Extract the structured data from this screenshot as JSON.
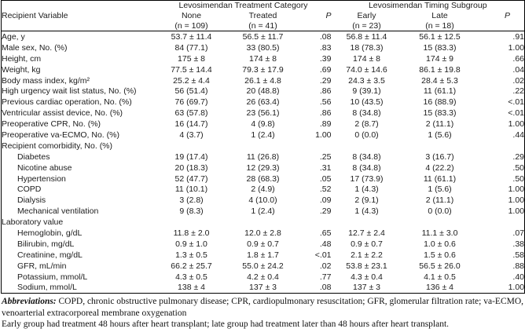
{
  "table": {
    "corner_header": "Recipient Variable",
    "groups": [
      {
        "label": "Levosimendan Treatment Category",
        "subcols": [
          "None",
          "Treated",
          "P"
        ],
        "ns": [
          "(n = 109)",
          "(n = 41)",
          ""
        ]
      },
      {
        "label": "Levosimendan Timing Subgroup",
        "subcols": [
          "Early",
          "Late",
          "P"
        ],
        "ns": [
          "(n = 23)",
          "(n = 18)",
          ""
        ]
      }
    ],
    "rows": [
      {
        "label": "Age, y",
        "indent": false,
        "values": [
          "53.7 ± 11.4",
          "56.5 ± 11.7",
          ".08",
          "56.8 ± 11.4",
          "56.1 ± 12.5",
          ".91"
        ]
      },
      {
        "label": "Male sex, No. (%)",
        "indent": false,
        "values": [
          "84 (77.1)",
          "33 (80.5)",
          ".83",
          "18 (78.3)",
          "15 (83.3)",
          "1.00"
        ]
      },
      {
        "label": "Height, cm",
        "indent": false,
        "values": [
          "175 ± 8",
          "174 ± 8",
          ".39",
          "174 ± 8",
          "174 ± 9",
          ".66"
        ]
      },
      {
        "label": "Weight, kg",
        "indent": false,
        "values": [
          "77.5 ± 14.4",
          "79.3 ± 17.9",
          ".69",
          "74.0 ± 14.6",
          "86.1 ± 19.8",
          ".04"
        ]
      },
      {
        "label": "Body mass index, kg/m²",
        "indent": false,
        "values": [
          "25.2 ± 4.4",
          "26.1 ± 4.8",
          ".29",
          "24.3 ± 3.5",
          "28.4 ± 5.3",
          ".02"
        ]
      },
      {
        "label": "High urgency wait list status, No. (%)",
        "indent": false,
        "values": [
          "56 (51.4)",
          "20 (48.8)",
          ".86",
          "9 (39.1)",
          "11 (61.1)",
          ".22"
        ]
      },
      {
        "label": "Previous cardiac operation, No. (%)",
        "indent": false,
        "values": [
          "76 (69.7)",
          "26 (63.4)",
          ".56",
          "10 (43.5)",
          "16 (88.9)",
          "<.01"
        ]
      },
      {
        "label": "Ventricular assist device, No. (%)",
        "indent": false,
        "values": [
          "63 (57.8)",
          "23 (56.1)",
          ".86",
          "8 (34.8)",
          "15 (83.3)",
          "<.01"
        ]
      },
      {
        "label": "Preoperative CPR, No. (%)",
        "indent": false,
        "values": [
          "16 (14.7)",
          "4 (9.8)",
          ".89",
          "2 (8.7)",
          "2 (11.1)",
          "1.00"
        ]
      },
      {
        "label": "Preoperative va-ECMO, No. (%)",
        "indent": false,
        "values": [
          "4 (3.7)",
          "1 (2.4)",
          "1.00",
          "0 (0.0)",
          "1 (5.6)",
          ".44"
        ]
      },
      {
        "label": "Recipient comorbidity, No. (%)",
        "indent": false,
        "values": [
          "",
          "",
          "",
          "",
          "",
          ""
        ]
      },
      {
        "label": "Diabetes",
        "indent": true,
        "values": [
          "19 (17.4)",
          "11 (26.8)",
          ".25",
          "8 (34.8)",
          "3 (16.7)",
          ".29"
        ]
      },
      {
        "label": "Nicotine abuse",
        "indent": true,
        "values": [
          "20 (18.3)",
          "12 (29.3)",
          ".31",
          "8 (34.8)",
          "4 (22.2)",
          ".50"
        ]
      },
      {
        "label": "Hypertension",
        "indent": true,
        "values": [
          "52 (47.7)",
          "28 (68.3)",
          ".05",
          "17 (73.9)",
          "11 (61.1)",
          ".50"
        ]
      },
      {
        "label": "COPD",
        "indent": true,
        "values": [
          "11 (10.1)",
          "2 (4.9)",
          ".52",
          "1 (4.3)",
          "1 (5.6)",
          "1.00"
        ]
      },
      {
        "label": "Dialysis",
        "indent": true,
        "values": [
          "3 (2.8)",
          "4 (10.0)",
          ".09",
          "2 (9.1)",
          "2 (11.1)",
          "1.00"
        ]
      },
      {
        "label": "Mechanical ventilation",
        "indent": true,
        "values": [
          "9 (8.3)",
          "1 (2.4)",
          ".29",
          "1 (4.3)",
          "0 (0.0)",
          "1.00"
        ]
      },
      {
        "label": "Laboratory value",
        "indent": false,
        "values": [
          "",
          "",
          "",
          "",
          "",
          ""
        ]
      },
      {
        "label": "Hemoglobin, g/dL",
        "indent": true,
        "values": [
          "11.8 ± 2.0",
          "12.0 ± 2.8",
          ".65",
          "12.7 ± 2.4",
          "11.1 ± 3.0",
          ".07"
        ]
      },
      {
        "label": "Bilirubin, mg/dL",
        "indent": true,
        "values": [
          "0.9 ± 1.0",
          "0.9 ± 0.7",
          ".48",
          "0.9 ± 0.7",
          "1.0 ± 0.6",
          ".38"
        ]
      },
      {
        "label": "Creatinine, mg/dL",
        "indent": true,
        "values": [
          "1.3 ± 0.5",
          "1.8 ± 1.7",
          "<.01",
          "2.1 ± 2.2",
          "1.5 ± 0.6",
          ".58"
        ]
      },
      {
        "label": "GFR, mL/min",
        "indent": true,
        "values": [
          "66.2 ± 25.7",
          "55.0 ± 24.2",
          ".02",
          "53.8 ± 23.1",
          "56.5 ± 26.0",
          ".88"
        ]
      },
      {
        "label": "Potassium, mmol/L",
        "indent": true,
        "values": [
          "4.3 ± 0.5",
          "4.2 ± 0.4",
          ".77",
          "4.3 ± 0.4",
          "4.1 ± 0.5",
          ".40"
        ]
      },
      {
        "label": "Sodium, mmol/L",
        "indent": true,
        "values": [
          "138 ± 4",
          "137 ± 3",
          ".08",
          "137 ± 3",
          "136 ± 4",
          "1.00"
        ]
      }
    ]
  },
  "footnotes": {
    "abbr_label": "Abbreviations:",
    "abbr_text": " COPD, chronic obstructive pulmonary disease; CPR, cardiopulmonary resuscitation; GFR, glomerular filtration rate; va-ECMO, venoarterial extracorporeal membrane oxygenation",
    "note": "Early group had treatment 48 hours after heart transplant; late group had treatment later than 48 hours after heart transplant."
  }
}
